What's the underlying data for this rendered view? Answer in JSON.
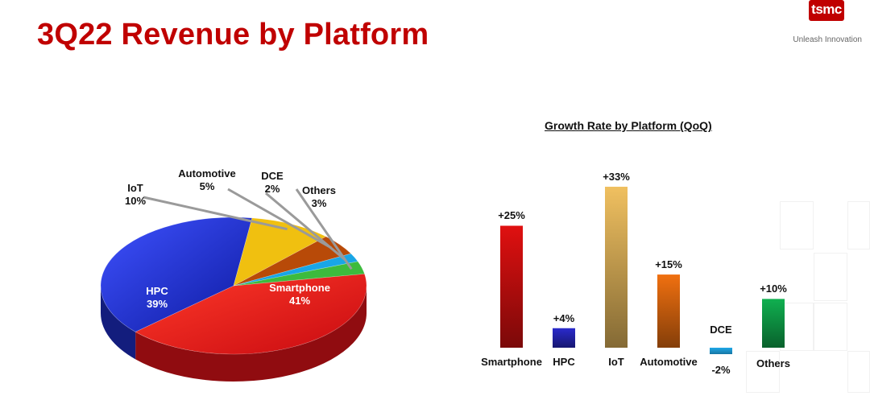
{
  "title": "3Q22 Revenue by Platform",
  "brand": {
    "logo_text": "tsmc",
    "tagline": "Unleash Innovation"
  },
  "chart_data": [
    {
      "type": "pie",
      "categories": [
        "Smartphone",
        "HPC",
        "IoT",
        "Automotive",
        "DCE",
        "Others"
      ],
      "values": [
        41,
        39,
        10,
        5,
        2,
        3
      ],
      "value_labels": [
        "41%",
        "39%",
        "10%",
        "5%",
        "2%",
        "3%"
      ],
      "colors": [
        "#e8141a",
        "#1e2fc9",
        "#f0c010",
        "#b84a08",
        "#19a6e6",
        "#3dbb3d"
      ],
      "style": "3d"
    },
    {
      "type": "bar",
      "title": "Growth Rate by Platform (QoQ)",
      "categories": [
        "Smartphone",
        "HPC",
        "IoT",
        "Automotive",
        "DCE",
        "Others"
      ],
      "values": [
        25,
        4,
        33,
        15,
        -2,
        10
      ],
      "value_labels": [
        "+25%",
        "+4%",
        "+33%",
        "+15%",
        "-2%",
        "+10%"
      ],
      "colors": [
        "#e01010",
        "#2a2acc",
        "#f0c060",
        "#f07010",
        "#20a8e8",
        "#10b050"
      ],
      "grid": false
    }
  ]
}
